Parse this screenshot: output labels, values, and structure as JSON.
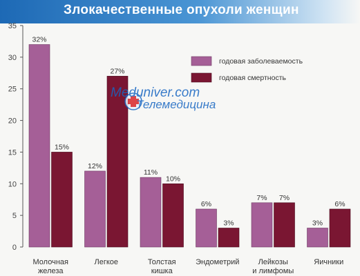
{
  "title": "Злокачественные опухоли женщин",
  "watermark": {
    "line1": "Meduniver.com",
    "line2": "Телемедицина"
  },
  "colors": {
    "incidence": "#a55f97",
    "mortality": "#7a1632",
    "title_band": "#1d69b5",
    "watermark": "#1766c2"
  },
  "chart_data": {
    "type": "bar",
    "title": "Злокачественные опухоли женщин",
    "xlabel": "",
    "ylabel": "",
    "ylim": [
      0,
      35
    ],
    "yticks": [
      0,
      5,
      10,
      15,
      20,
      25,
      30,
      35
    ],
    "grid": false,
    "legend_position": "top-right",
    "categories": [
      [
        "Молочная",
        "железа"
      ],
      [
        "Легкое"
      ],
      [
        "Толстая",
        "кишка"
      ],
      [
        "Эндометрий"
      ],
      [
        "Лейкозы",
        "и лимфомы"
      ],
      [
        "Яичники"
      ]
    ],
    "series": [
      {
        "name": "годовая заболеваемость",
        "values": [
          32,
          12,
          11,
          6,
          7,
          3
        ],
        "labels": [
          "32%",
          "12%",
          "11%",
          "6%",
          "7%",
          "3%"
        ]
      },
      {
        "name": "годовая смертность",
        "values": [
          15,
          27,
          10,
          3,
          7,
          6
        ],
        "labels": [
          "15%",
          "27%",
          "10%",
          "3%",
          "7%",
          "6%"
        ]
      }
    ]
  }
}
